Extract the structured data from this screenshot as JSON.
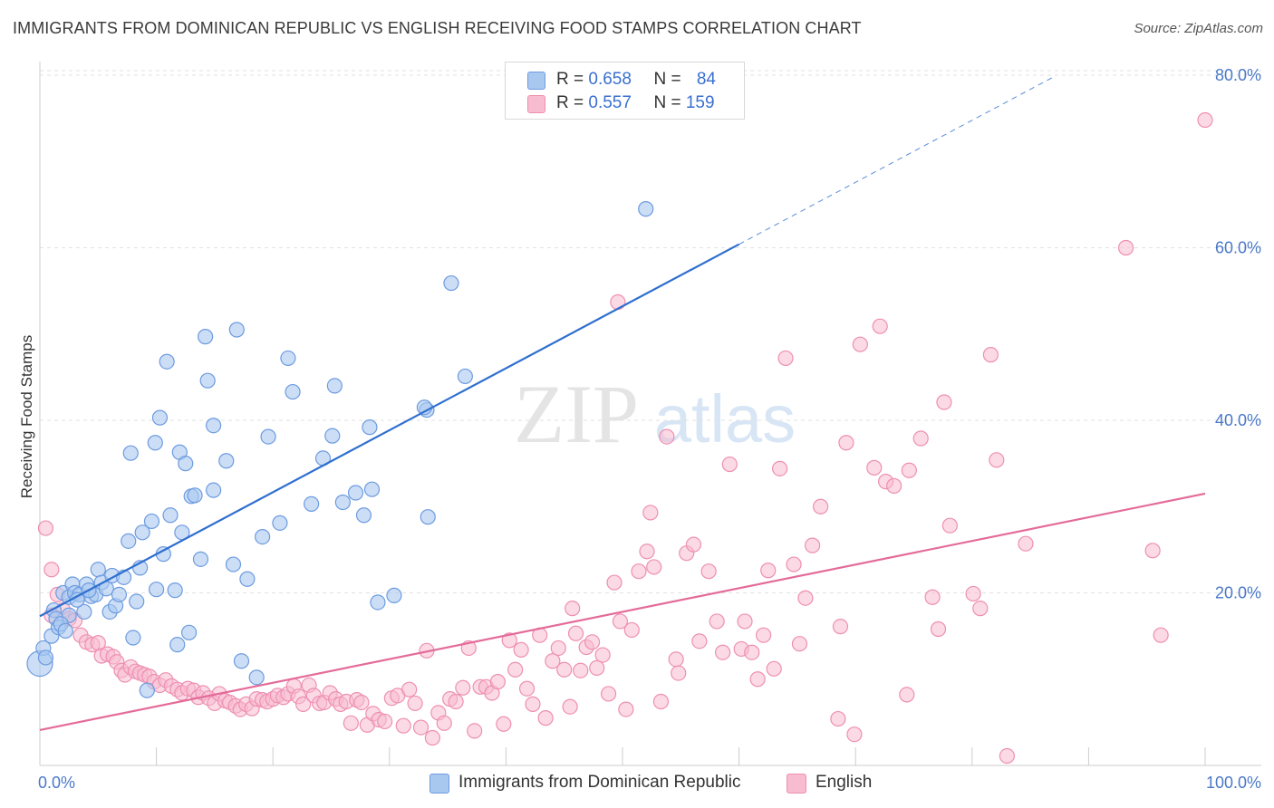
{
  "title": "IMMIGRANTS FROM DOMINICAN REPUBLIC VS ENGLISH RECEIVING FOOD STAMPS CORRELATION CHART",
  "source": "Source: ZipAtlas.com",
  "watermark": {
    "zip": "ZIP",
    "atlas": "atlas"
  },
  "legend": {
    "rows": [
      {
        "r_label": "R = ",
        "r_value": "0.658",
        "n_label": "N = ",
        "n_value": "84"
      },
      {
        "r_label": "R = ",
        "r_value": "0.557",
        "n_label": "N = ",
        "n_value": "159"
      }
    ]
  },
  "chart_data": {
    "type": "scatter",
    "title": "IMMIGRANTS FROM DOMINICAN REPUBLIC VS ENGLISH RECEIVING FOOD STAMPS CORRELATION CHART",
    "xlabel": "",
    "ylabel": "Receiving Food Stamps",
    "xlim": [
      0,
      100
    ],
    "ylim": [
      0,
      80
    ],
    "x_tick_labels": [
      "0.0%",
      "100.0%"
    ],
    "y_ticks": [
      20,
      40,
      60,
      80
    ],
    "y_tick_labels": [
      "20.0%",
      "40.0%",
      "60.0%",
      "80.0%"
    ],
    "grid": true,
    "legend_position": "top-center",
    "colors": {
      "blue_fill": "#a9c8f0",
      "blue_stroke": "#6d9be0",
      "blue_line": "#2f6fcf",
      "pink_fill": "#f7bcd0",
      "pink_stroke": "#ee8fb1",
      "pink_line": "#e46b99",
      "grid": "#e2e2e2",
      "axis": "#cccccc",
      "tick_text": "#4a78c8"
    },
    "series": [
      {
        "name": "Immigrants from Dominican Republic",
        "r": 0.658,
        "n": 84,
        "trend": {
          "x0": 0,
          "y0": 17.3,
          "x1": 60,
          "y1": 60.4,
          "dash_x1": 87,
          "dash_y1": 79.8
        },
        "points": [
          [
            0,
            11.8
          ],
          [
            0.3,
            13.6
          ],
          [
            0.5,
            12.5
          ],
          [
            1,
            15
          ],
          [
            1.2,
            18
          ],
          [
            1.4,
            17
          ],
          [
            1.6,
            16
          ],
          [
            2,
            20
          ],
          [
            2.5,
            19.5
          ],
          [
            2.8,
            21
          ],
          [
            3,
            20
          ],
          [
            3.4,
            19.8
          ],
          [
            3.8,
            17.8
          ],
          [
            4,
            21
          ],
          [
            4.4,
            19.6
          ],
          [
            4.8,
            19.8
          ],
          [
            5,
            22.7
          ],
          [
            5.3,
            21.2
          ],
          [
            5.7,
            20.5
          ],
          [
            6,
            17.8
          ],
          [
            6.2,
            22
          ],
          [
            6.5,
            18.5
          ],
          [
            6.8,
            19.8
          ],
          [
            7.2,
            21.8
          ],
          [
            7.6,
            26
          ],
          [
            7.8,
            36.2
          ],
          [
            8,
            14.8
          ],
          [
            8.3,
            19
          ],
          [
            8.6,
            22.9
          ],
          [
            8.8,
            27
          ],
          [
            9.2,
            8.7
          ],
          [
            9.6,
            28.3
          ],
          [
            9.9,
            37.4
          ],
          [
            10,
            20.4
          ],
          [
            10.3,
            40.3
          ],
          [
            10.6,
            24.5
          ],
          [
            10.9,
            46.8
          ],
          [
            11.2,
            29
          ],
          [
            11.6,
            20.3
          ],
          [
            11.8,
            14
          ],
          [
            12,
            36.3
          ],
          [
            12.2,
            27
          ],
          [
            12.5,
            35
          ],
          [
            12.8,
            15.4
          ],
          [
            13,
            31.2
          ],
          [
            13.3,
            31.3
          ],
          [
            13.8,
            23.9
          ],
          [
            14.2,
            49.7
          ],
          [
            14.4,
            44.6
          ],
          [
            14.9,
            39.4
          ],
          [
            14.9,
            31.9
          ],
          [
            16,
            35.3
          ],
          [
            16.6,
            23.3
          ],
          [
            16.9,
            50.5
          ],
          [
            17.3,
            12.1
          ],
          [
            17.8,
            21.6
          ],
          [
            18.6,
            10.2
          ],
          [
            19.1,
            26.5
          ],
          [
            19.6,
            38.1
          ],
          [
            20.6,
            28.1
          ],
          [
            21.3,
            47.2
          ],
          [
            21.7,
            43.3
          ],
          [
            23.3,
            30.3
          ],
          [
            24.3,
            35.6
          ],
          [
            25.1,
            38.2
          ],
          [
            25.3,
            44
          ],
          [
            26.0,
            30.5
          ],
          [
            27.1,
            31.6
          ],
          [
            27.8,
            29
          ],
          [
            28.3,
            39.2
          ],
          [
            28.5,
            32
          ],
          [
            29,
            18.9
          ],
          [
            30.4,
            19.7
          ],
          [
            33.2,
            41.2
          ],
          [
            33,
            41.5
          ],
          [
            33.3,
            28.8
          ],
          [
            35.3,
            55.9
          ],
          [
            36.5,
            45.1
          ],
          [
            52,
            64.5
          ],
          [
            2.5,
            17.4
          ],
          [
            4.2,
            20.3
          ],
          [
            1.8,
            16.4
          ],
          [
            2.2,
            15.6
          ],
          [
            3.2,
            19.2
          ]
        ]
      },
      {
        "name": "English",
        "r": 0.557,
        "n": 159,
        "trend": {
          "x0": 0,
          "y0": 4.1,
          "x1": 100,
          "y1": 31.5
        },
        "points": [
          [
            0.5,
            27.5
          ],
          [
            1,
            22.7
          ],
          [
            1.5,
            19.8
          ],
          [
            2,
            18
          ],
          [
            2.5,
            17
          ],
          [
            3,
            16.8
          ],
          [
            3.5,
            15.1
          ],
          [
            4,
            14.3
          ],
          [
            4.5,
            14
          ],
          [
            5,
            14.2
          ],
          [
            5.3,
            12.7
          ],
          [
            5.8,
            12.9
          ],
          [
            6.3,
            12.6
          ],
          [
            6.6,
            12
          ],
          [
            7,
            11
          ],
          [
            7.3,
            10.5
          ],
          [
            7.8,
            11.4
          ],
          [
            8.2,
            10.9
          ],
          [
            8.6,
            10.7
          ],
          [
            9,
            10.5
          ],
          [
            9.4,
            10.3
          ],
          [
            9.8,
            9.7
          ],
          [
            10.3,
            9.3
          ],
          [
            10.8,
            9.9
          ],
          [
            11.3,
            9.2
          ],
          [
            11.8,
            8.8
          ],
          [
            12.2,
            8.4
          ],
          [
            12.7,
            8.9
          ],
          [
            13.2,
            8.7
          ],
          [
            13.6,
            7.9
          ],
          [
            14,
            8.4
          ],
          [
            14.5,
            7.8
          ],
          [
            15,
            7.2
          ],
          [
            15.4,
            8.3
          ],
          [
            15.9,
            7.5
          ],
          [
            16.3,
            7.3
          ],
          [
            16.8,
            6.9
          ],
          [
            17.2,
            6.5
          ],
          [
            17.7,
            7.1
          ],
          [
            18.2,
            6.6
          ],
          [
            18.6,
            7.7
          ],
          [
            19.1,
            7.6
          ],
          [
            19.5,
            7.4
          ],
          [
            20,
            7.7
          ],
          [
            20.4,
            8.1
          ],
          [
            20.9,
            7.9
          ],
          [
            21.3,
            8.3
          ],
          [
            21.8,
            9.2
          ],
          [
            22.2,
            8
          ],
          [
            22.6,
            7.1
          ],
          [
            23.1,
            9.3
          ],
          [
            23.5,
            8.1
          ],
          [
            24,
            7.2
          ],
          [
            24.4,
            7.3
          ],
          [
            24.9,
            8.4
          ],
          [
            25.4,
            7.7
          ],
          [
            25.8,
            7.1
          ],
          [
            26.3,
            7.4
          ],
          [
            26.7,
            4.9
          ],
          [
            27.2,
            7.6
          ],
          [
            27.6,
            7.3
          ],
          [
            28.1,
            4.7
          ],
          [
            28.6,
            6
          ],
          [
            29.1,
            5.3
          ],
          [
            29.6,
            5.1
          ],
          [
            30.2,
            7.8
          ],
          [
            30.7,
            8.1
          ],
          [
            31.2,
            4.6
          ],
          [
            31.7,
            8.8
          ],
          [
            32.2,
            7.2
          ],
          [
            32.7,
            4.4
          ],
          [
            33.2,
            13.3
          ],
          [
            33.7,
            3.2
          ],
          [
            34.2,
            6.1
          ],
          [
            34.7,
            4.9
          ],
          [
            35.2,
            7.7
          ],
          [
            35.7,
            7.4
          ],
          [
            36.3,
            9
          ],
          [
            36.8,
            13.6
          ],
          [
            37.3,
            4
          ],
          [
            37.8,
            9.1
          ],
          [
            38.3,
            9.1
          ],
          [
            38.8,
            8.4
          ],
          [
            39.3,
            9.7
          ],
          [
            39.8,
            4.8
          ],
          [
            40.3,
            14.5
          ],
          [
            40.8,
            11.1
          ],
          [
            41.3,
            13.4
          ],
          [
            41.8,
            8.9
          ],
          [
            42.3,
            7.1
          ],
          [
            42.9,
            15.1
          ],
          [
            43.4,
            5.5
          ],
          [
            44,
            12.1
          ],
          [
            44.5,
            13.6
          ],
          [
            45,
            11.1
          ],
          [
            45.5,
            6.8
          ],
          [
            46,
            15.3
          ],
          [
            46.4,
            11
          ],
          [
            46.9,
            13.7
          ],
          [
            47.4,
            14.3
          ],
          [
            47.8,
            11.3
          ],
          [
            48.3,
            12.8
          ],
          [
            48.8,
            8.3
          ],
          [
            49.3,
            21.2
          ],
          [
            49.8,
            16.7
          ],
          [
            50.3,
            6.5
          ],
          [
            50.8,
            15.7
          ],
          [
            51.4,
            22.5
          ],
          [
            52.1,
            24.8
          ],
          [
            52.4,
            29.3
          ],
          [
            52.7,
            23
          ],
          [
            53.3,
            7.4
          ],
          [
            53.8,
            38.1
          ],
          [
            54.6,
            12.3
          ],
          [
            54.8,
            10.7
          ],
          [
            55.5,
            24.6
          ],
          [
            56.1,
            25.6
          ],
          [
            56.6,
            14.4
          ],
          [
            57.4,
            22.5
          ],
          [
            58.1,
            16.7
          ],
          [
            58.6,
            13.1
          ],
          [
            59.2,
            34.9
          ],
          [
            60.2,
            13.5
          ],
          [
            60.5,
            16.7
          ],
          [
            61.1,
            13.1
          ],
          [
            61.6,
            10
          ],
          [
            62.1,
            15.1
          ],
          [
            62.5,
            22.6
          ],
          [
            63,
            11.2
          ],
          [
            63.5,
            34.4
          ],
          [
            64,
            47.2
          ],
          [
            64.7,
            23.3
          ],
          [
            65.2,
            14.1
          ],
          [
            65.7,
            19.4
          ],
          [
            66.3,
            25.5
          ],
          [
            67,
            30
          ],
          [
            68.5,
            5.4
          ],
          [
            68.7,
            16.1
          ],
          [
            69.2,
            37.4
          ],
          [
            69.9,
            3.6
          ],
          [
            70.4,
            48.8
          ],
          [
            71.6,
            34.5
          ],
          [
            72.1,
            50.9
          ],
          [
            72.6,
            32.9
          ],
          [
            73.3,
            32.4
          ],
          [
            74.4,
            8.2
          ],
          [
            74.6,
            34.2
          ],
          [
            75.6,
            37.9
          ],
          [
            76.6,
            19.5
          ],
          [
            77.1,
            15.8
          ],
          [
            77.6,
            42.1
          ],
          [
            78.1,
            27.8
          ],
          [
            80.1,
            19.9
          ],
          [
            80.7,
            18.2
          ],
          [
            81.6,
            47.6
          ],
          [
            82.1,
            35.4
          ],
          [
            83,
            1.1
          ],
          [
            84.6,
            25.7
          ],
          [
            93.2,
            60
          ],
          [
            95.5,
            24.9
          ],
          [
            96.2,
            15.1
          ],
          [
            100,
            74.8
          ],
          [
            49.6,
            53.7
          ],
          [
            45.7,
            18.2
          ],
          [
            1,
            17.4
          ]
        ]
      }
    ]
  }
}
